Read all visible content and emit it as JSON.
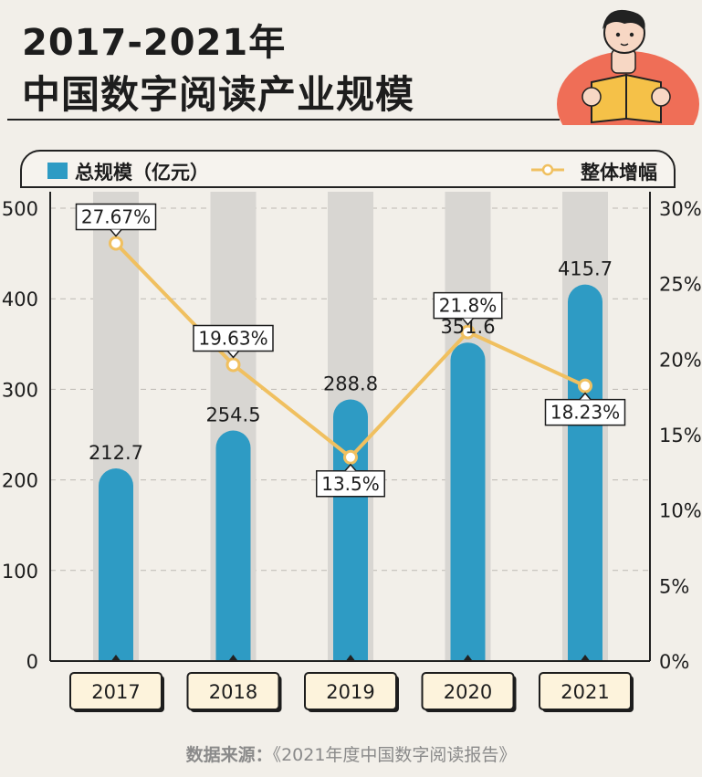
{
  "header": {
    "title_line1": "2017-2021年",
    "title_line2": "中国数字阅读产业规模"
  },
  "legend": {
    "bar_label": "总规模（亿元）",
    "line_label": "整体增幅"
  },
  "source": {
    "label": "数据来源：",
    "text": "《2021年度中国数字阅读报告》"
  },
  "colors": {
    "bar": "#2e9bc4",
    "bar_track": "#d8d6d2",
    "line": "#f0c060",
    "point_fill": "#ffffff",
    "axis": "#222222"
  },
  "chart_data": {
    "type": "bar",
    "categories": [
      "2017",
      "2018",
      "2019",
      "2020",
      "2021"
    ],
    "series": [
      {
        "values": [
          212.7,
          254.5,
          288.8,
          351.6,
          415.7
        ],
        "axis": "left",
        "mark": "bar",
        "labels": [
          "212.7",
          "254.5",
          "288.8",
          "351.6",
          "415.7"
        ]
      },
      {
        "values": [
          27.67,
          19.63,
          13.5,
          21.8,
          18.23
        ],
        "axis": "right",
        "mark": "line",
        "labels": [
          "27.67%",
          "19.63%",
          "13.5%",
          "21.8%",
          "18.23%"
        ]
      }
    ],
    "ylim": [
      0,
      500
    ],
    "y2lim": [
      0,
      30
    ],
    "yticks": [
      "0",
      "100",
      "200",
      "300",
      "400",
      "500"
    ],
    "y2ticks": [
      "0%",
      "5%",
      "10%",
      "15%",
      "20%",
      "25%",
      "30%"
    ],
    "grid": true,
    "legend_position": "top"
  }
}
